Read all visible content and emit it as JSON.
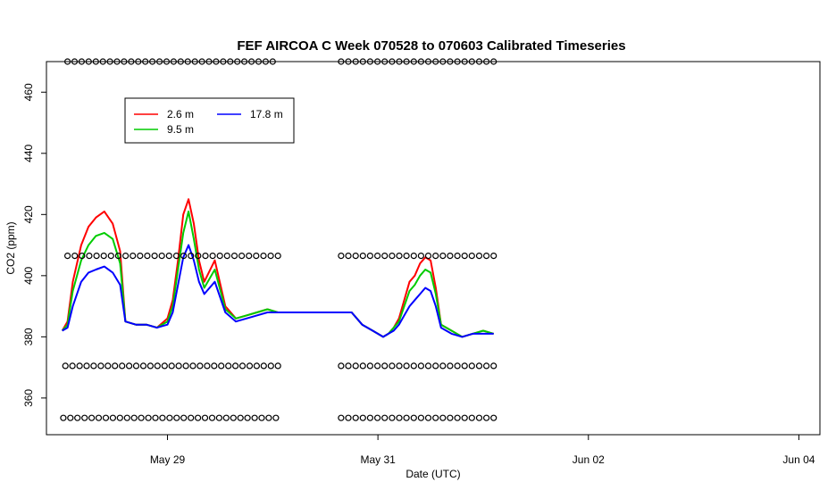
{
  "chart_data": {
    "type": "line",
    "title": "FEF AIRCOA C  Week 070528 to 070603  Calibrated Timeseries",
    "xlabel": "Date (UTC)",
    "ylabel": "CO2 (ppm)",
    "xlim": [
      -1.15,
      6.2
    ],
    "ylim": [
      348,
      470
    ],
    "x_ticks": [
      {
        "value": 0,
        "label": "May 29"
      },
      {
        "value": 2,
        "label": "May 31"
      },
      {
        "value": 4,
        "label": "Jun 02"
      },
      {
        "value": 6,
        "label": "Jun 04"
      }
    ],
    "y_ticks": [
      360,
      380,
      400,
      420,
      440,
      460
    ],
    "legend": {
      "placement": "top-left",
      "entries": [
        {
          "label": "2.6 m",
          "color": "#ff0000"
        },
        {
          "label": "9.5 m",
          "color": "#00cc00"
        },
        {
          "label": "17.8 m",
          "color": "#0000ff"
        }
      ]
    },
    "series": [
      {
        "name": "2.6 m",
        "color": "#ff0000",
        "x": [
          -1.0,
          -0.95,
          -0.9,
          -0.82,
          -0.75,
          -0.68,
          -0.6,
          -0.52,
          -0.45,
          -0.4,
          -0.3,
          -0.2,
          -0.1,
          0.0,
          0.05,
          0.1,
          0.15,
          0.2,
          0.25,
          0.3,
          0.35,
          0.45,
          0.55,
          0.65,
          0.75,
          0.85,
          0.95,
          1.05,
          1.15,
          1.25,
          1.35,
          1.45,
          1.55,
          1.65,
          1.75,
          1.85,
          1.95,
          2.05,
          2.1,
          2.15,
          2.2,
          2.25,
          2.3,
          2.35,
          2.4,
          2.45,
          2.5,
          2.55,
          2.6,
          2.7,
          2.8,
          2.9,
          3.0,
          3.1
        ],
        "values": [
          382,
          385,
          398,
          410,
          416,
          419,
          421,
          417,
          408,
          385,
          384,
          384,
          383,
          386,
          392,
          405,
          420,
          425,
          417,
          405,
          398,
          405,
          390,
          386,
          387,
          388,
          389,
          388,
          388,
          388,
          388,
          388,
          388,
          388,
          388,
          384,
          382,
          380,
          381,
          383,
          386,
          392,
          398,
          400,
          404,
          406,
          405,
          396,
          384,
          382,
          380,
          381,
          382,
          381
        ]
      },
      {
        "name": "9.5 m",
        "color": "#00cc00",
        "x": [
          -1.0,
          -0.95,
          -0.9,
          -0.82,
          -0.75,
          -0.68,
          -0.6,
          -0.52,
          -0.45,
          -0.4,
          -0.3,
          -0.2,
          -0.1,
          0.0,
          0.05,
          0.1,
          0.15,
          0.2,
          0.25,
          0.3,
          0.35,
          0.45,
          0.55,
          0.65,
          0.75,
          0.85,
          0.95,
          1.05,
          1.15,
          1.25,
          1.35,
          1.45,
          1.55,
          1.65,
          1.75,
          1.85,
          1.95,
          2.05,
          2.1,
          2.15,
          2.2,
          2.25,
          2.3,
          2.35,
          2.4,
          2.45,
          2.5,
          2.55,
          2.6,
          2.7,
          2.8,
          2.9,
          3.0,
          3.1
        ],
        "values": [
          382,
          384,
          395,
          405,
          410,
          413,
          414,
          412,
          404,
          385,
          384,
          384,
          383,
          385,
          390,
          402,
          414,
          421,
          412,
          402,
          396,
          402,
          389,
          386,
          387,
          388,
          389,
          388,
          388,
          388,
          388,
          388,
          388,
          388,
          388,
          384,
          382,
          380,
          381,
          383,
          385,
          390,
          395,
          397,
          400,
          402,
          401,
          394,
          384,
          382,
          380,
          381,
          382,
          381
        ]
      },
      {
        "name": "17.8 m",
        "color": "#0000ff",
        "x": [
          -1.0,
          -0.95,
          -0.9,
          -0.82,
          -0.75,
          -0.68,
          -0.6,
          -0.52,
          -0.45,
          -0.4,
          -0.3,
          -0.2,
          -0.1,
          0.0,
          0.05,
          0.1,
          0.15,
          0.2,
          0.25,
          0.3,
          0.35,
          0.45,
          0.55,
          0.65,
          0.75,
          0.85,
          0.95,
          1.05,
          1.15,
          1.25,
          1.35,
          1.45,
          1.55,
          1.65,
          1.75,
          1.85,
          1.95,
          2.05,
          2.1,
          2.15,
          2.2,
          2.25,
          2.3,
          2.35,
          2.4,
          2.45,
          2.5,
          2.55,
          2.6,
          2.7,
          2.8,
          2.9,
          3.0,
          3.1
        ],
        "values": [
          382,
          383,
          390,
          398,
          401,
          402,
          403,
          401,
          397,
          385,
          384,
          384,
          383,
          384,
          388,
          397,
          406,
          410,
          405,
          398,
          394,
          398,
          388,
          385,
          386,
          387,
          388,
          388,
          388,
          388,
          388,
          388,
          388,
          388,
          388,
          384,
          382,
          380,
          381,
          382,
          384,
          387,
          390,
          392,
          394,
          396,
          395,
          390,
          383,
          381,
          380,
          381,
          381,
          381
        ]
      }
    ],
    "marker_rows": [
      {
        "y": 470,
        "segments": [
          [
            -0.95,
            1.0
          ],
          [
            1.65,
            3.1
          ]
        ]
      },
      {
        "y": 406.5,
        "segments": [
          [
            -0.95,
            1.05
          ],
          [
            1.65,
            3.1
          ]
        ]
      },
      {
        "y": 370.5,
        "segments": [
          [
            -0.97,
            1.05
          ],
          [
            1.65,
            3.1
          ]
        ]
      },
      {
        "y": 353.5,
        "segments": [
          [
            -0.99,
            1.03
          ],
          [
            1.65,
            3.1
          ]
        ]
      }
    ],
    "grid": false
  }
}
